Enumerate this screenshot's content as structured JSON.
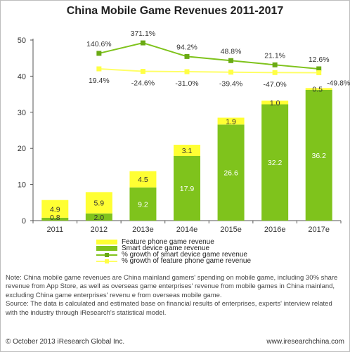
{
  "title": "China Mobile Game Revenues 2011-2017",
  "legend": {
    "feature_bar": "Feature phone game revenue",
    "smart_bar": "Smart device game revenue",
    "smart_growth": "% growth of smart device game revenue",
    "feature_growth": "% growth of feature phone game revenue"
  },
  "note": {
    "line1": "Note: China mobile game revenues are China mainland gamers' spending on mobile game, including 30% share revenue from App Store, as well as overseas game enterprises' revenue from mobile games in China mainland, excluding China game enterprises' revenu e from overseas mobile game.",
    "line2": "Source: The data is calculated and estimated base on financial results of enterprises, experts' interview related with the industry through iResearch's statistical model."
  },
  "footer": {
    "copyright": "© October 2013 iResearch Global Inc.",
    "url": "www.iresearchchina.com"
  },
  "colors": {
    "feature": "#ffff33",
    "smart": "#7fc31c",
    "smart_line": "#7fc31c",
    "feature_line": "#ffff66"
  },
  "chart_data": {
    "type": "bar",
    "stacked": true,
    "categories": [
      "2011",
      "2012",
      "2013e",
      "2014e",
      "2015e",
      "2016e",
      "2017e"
    ],
    "ylim": [
      0,
      50
    ],
    "yticks": [
      0,
      10,
      20,
      30,
      40,
      50
    ],
    "series": [
      {
        "name": "Smart device game revenue",
        "values": [
          0.8,
          2.0,
          9.2,
          17.9,
          26.6,
          32.2,
          36.2
        ]
      },
      {
        "name": "Feature phone game revenue",
        "values": [
          4.9,
          5.9,
          4.5,
          3.1,
          1.9,
          1.0,
          0.5
        ]
      }
    ],
    "growth_lines": [
      {
        "name": "% growth of smart device game revenue",
        "labels": [
          "140.6%",
          "371.1%",
          "94.2%",
          "48.8%",
          "21.1%",
          "12.6%"
        ],
        "values": [
          140.6,
          371.1,
          94.2,
          48.8,
          21.1,
          12.6
        ]
      },
      {
        "name": "% growth of feature phone game revenue",
        "labels": [
          "19.4%",
          "-24.6%",
          "-31.0%",
          "-39.4%",
          "-47.0%",
          "-49.8%"
        ],
        "values": [
          19.4,
          -24.6,
          -31.0,
          -39.4,
          -47.0,
          -49.8
        ]
      }
    ]
  }
}
